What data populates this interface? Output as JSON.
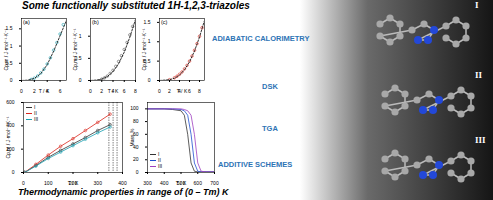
{
  "title": "Some functionally substituted 1H-1,2,3-triazoles",
  "methods": [
    "ADIABATIC CALORIMETRY",
    "DSK",
    "TGA",
    "ADDITIVE SCHEMES"
  ],
  "caption": "Thermodynamic properties in range of (0 – Tm) K",
  "molecules": [
    "I",
    "II",
    "III"
  ],
  "chart_data": [
    {
      "type": "scatter",
      "title": "(a)",
      "x_label": "T / K",
      "y_label": "Cp,m / J·mol⁻¹·K⁻¹",
      "xlim": [
        0,
        7
      ],
      "xticks": [
        0,
        2,
        4,
        6
      ],
      "ylim": [
        0,
        1.8
      ],
      "yticks": [
        0,
        0.5,
        1,
        1.5
      ],
      "series": [
        {
          "type": "scatter",
          "marker": "open_circle",
          "color": "#1a9fb0",
          "x": [
            1.5,
            2,
            2.5,
            3,
            3.5,
            4,
            4.5,
            5,
            5.5,
            6,
            6.5
          ],
          "values": [
            0.03,
            0.07,
            0.13,
            0.22,
            0.33,
            0.48,
            0.66,
            0.88,
            1.1,
            1.35,
            1.62
          ]
        },
        {
          "type": "line",
          "line_style": "dashed",
          "color": "#000000",
          "x": [
            0,
            1,
            2,
            3,
            4,
            5,
            6,
            7
          ],
          "values": [
            0,
            0.01,
            0.06,
            0.2,
            0.46,
            0.85,
            1.3,
            1.75
          ]
        }
      ]
    },
    {
      "type": "scatter",
      "title": "(b)",
      "x_label": "T / K",
      "y_label": "Cp,m / J·mol⁻¹·K⁻¹",
      "xlim": [
        0,
        8
      ],
      "xticks": [
        0,
        2,
        4,
        6,
        8
      ],
      "ylim": [
        0,
        1.4
      ],
      "yticks": [
        0,
        0.5,
        1
      ],
      "series": [
        {
          "type": "scatter",
          "marker": "open_circle",
          "color": "#555555",
          "x": [
            2,
            2.5,
            3,
            3.5,
            4,
            4.5,
            5,
            5.5,
            6,
            6.5,
            7,
            7.5
          ],
          "values": [
            0.03,
            0.06,
            0.1,
            0.16,
            0.23,
            0.32,
            0.43,
            0.56,
            0.7,
            0.86,
            1.03,
            1.22
          ]
        },
        {
          "type": "line",
          "line_style": "dashed",
          "color": "#000000",
          "x": [
            0,
            1,
            2,
            3,
            4,
            5,
            6,
            7,
            8
          ],
          "values": [
            0,
            0.01,
            0.03,
            0.09,
            0.2,
            0.38,
            0.64,
            0.98,
            1.38
          ]
        }
      ]
    },
    {
      "type": "scatter",
      "title": "(c)",
      "x_label": "T / K",
      "y_label": "Cp,m / J·mol⁻¹·K⁻¹",
      "xlim": [
        0,
        9
      ],
      "xticks": [
        0,
        2,
        4,
        6,
        8
      ],
      "ylim": [
        0,
        1.6
      ],
      "yticks": [
        0,
        0.5,
        1,
        1.5
      ],
      "series": [
        {
          "type": "scatter",
          "marker": "open_circle",
          "color": "#d9261c",
          "x": [
            2,
            3,
            3.5,
            4,
            4.5,
            5,
            5.5,
            6,
            6.5,
            7,
            7.5,
            8,
            8.5
          ],
          "values": [
            0.02,
            0.07,
            0.11,
            0.16,
            0.22,
            0.3,
            0.39,
            0.5,
            0.63,
            0.78,
            0.95,
            1.14,
            1.36
          ]
        },
        {
          "type": "line",
          "line_style": "dashed",
          "color": "#000000",
          "x": [
            0,
            2,
            3,
            4,
            5,
            6,
            7,
            8,
            9
          ],
          "values": [
            0,
            0.02,
            0.06,
            0.14,
            0.28,
            0.48,
            0.76,
            1.12,
            1.55
          ]
        }
      ]
    },
    {
      "type": "line",
      "x_label": "T / K",
      "y_label": "Cp,m / J·mol⁻¹·K⁻¹",
      "xlim": [
        0,
        400
      ],
      "xticks": [
        0,
        100,
        200,
        300,
        400
      ],
      "ylim": [
        0,
        600
      ],
      "yticks": [
        0,
        200,
        400,
        600
      ],
      "legend": "top-left",
      "reference_lines": [
        345,
        362,
        378
      ],
      "x": [
        5,
        50,
        100,
        150,
        200,
        250,
        300,
        350
      ],
      "series": [
        {
          "name": "I",
          "marker": "open_circle",
          "color": "#333333",
          "values": [
            1,
            60,
            130,
            190,
            245,
            300,
            360,
            410
          ]
        },
        {
          "name": "II",
          "marker": "open_circle",
          "color": "#d9261c",
          "values": [
            1,
            70,
            150,
            225,
            290,
            360,
            430,
            500
          ]
        },
        {
          "name": "III",
          "marker": "open_circle",
          "color": "#1a9fb0",
          "values": [
            1,
            55,
            120,
            175,
            230,
            285,
            340,
            390
          ]
        }
      ]
    },
    {
      "type": "line",
      "x_label": "T / K",
      "y_label": "Mass %",
      "xlim": [
        300,
        700
      ],
      "xticks": [
        300,
        400,
        500,
        600,
        700
      ],
      "ylim": [
        0,
        110
      ],
      "yticks": [
        0,
        20,
        40,
        60,
        80,
        100
      ],
      "legend": "bottom-left",
      "x": [
        300,
        400,
        450,
        500,
        520,
        540,
        560,
        580,
        600,
        620,
        650,
        700
      ],
      "series": [
        {
          "name": "I",
          "color": "#333333",
          "values": [
            100,
            100,
            99,
            97,
            90,
            60,
            15,
            2,
            1,
            1,
            1,
            1
          ]
        },
        {
          "name": "II",
          "color": "#1f4fd1",
          "values": [
            100,
            100,
            100,
            99,
            97,
            90,
            60,
            15,
            2,
            1,
            1,
            1
          ]
        },
        {
          "name": "III",
          "color": "#a040c0",
          "values": [
            100,
            100,
            100,
            100,
            99,
            97,
            90,
            60,
            15,
            2,
            1,
            1
          ]
        }
      ]
    }
  ]
}
